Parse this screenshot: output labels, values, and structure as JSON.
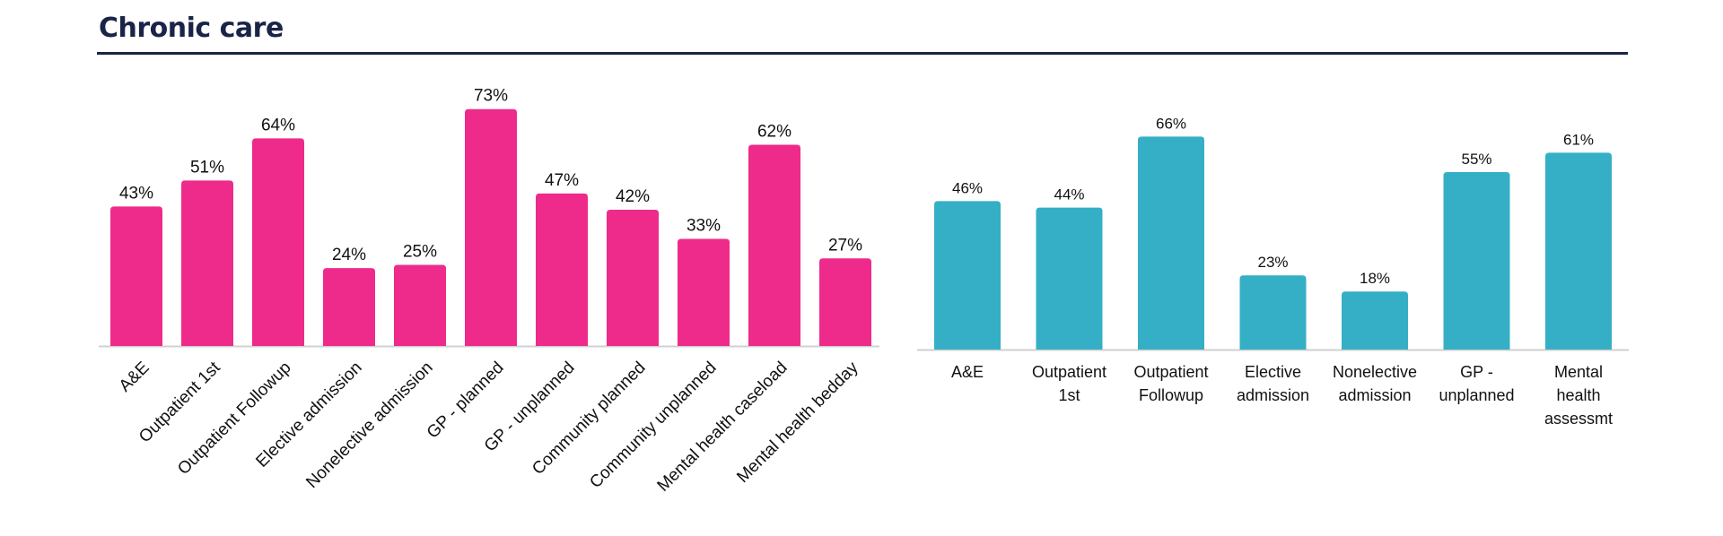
{
  "page": {
    "title": "Chronic care"
  },
  "colors": {
    "left_bars": "#ee2b8b",
    "right_bars": "#35afc6",
    "title": "#1a2447",
    "axis": "#d0d0d0"
  },
  "chart_data": [
    {
      "type": "bar",
      "title": "",
      "xlabel": "",
      "ylabel": "",
      "ylim": [
        0,
        100
      ],
      "grid": false,
      "categories": [
        "A&E",
        "Outpatient 1st",
        "Outpatient Followup",
        "Elective admission",
        "Nonelective admission",
        "GP - planned",
        "GP - unplanned",
        "Community planned",
        "Community unplanned",
        "Mental health caseload",
        "Mental health bedday"
      ],
      "values": [
        43,
        51,
        64,
        24,
        25,
        73,
        47,
        42,
        33,
        62,
        27
      ],
      "data_labels": [
        "43%",
        "51%",
        "64%",
        "24%",
        "25%",
        "73%",
        "47%",
        "42%",
        "33%",
        "62%",
        "27%"
      ]
    },
    {
      "type": "bar",
      "title": "",
      "xlabel": "",
      "ylabel": "",
      "ylim": [
        0,
        100
      ],
      "grid": false,
      "categories": [
        "A&E",
        "Outpatient 1st",
        "Outpatient Followup",
        "Elective admission",
        "Nonelective admission",
        "GP - unplanned",
        "Mental health assessmt"
      ],
      "category_lines": [
        [
          "A&E"
        ],
        [
          "Outpatient",
          "1st"
        ],
        [
          "Outpatient",
          "Followup"
        ],
        [
          "Elective",
          "admission"
        ],
        [
          "Nonelective",
          "admission"
        ],
        [
          "GP -",
          "unplanned"
        ],
        [
          "Mental",
          "health",
          "assessmt"
        ]
      ],
      "values": [
        46,
        44,
        66,
        23,
        18,
        55,
        61
      ],
      "data_labels": [
        "46%",
        "44%",
        "66%",
        "23%",
        "18%",
        "55%",
        "61%"
      ]
    }
  ]
}
